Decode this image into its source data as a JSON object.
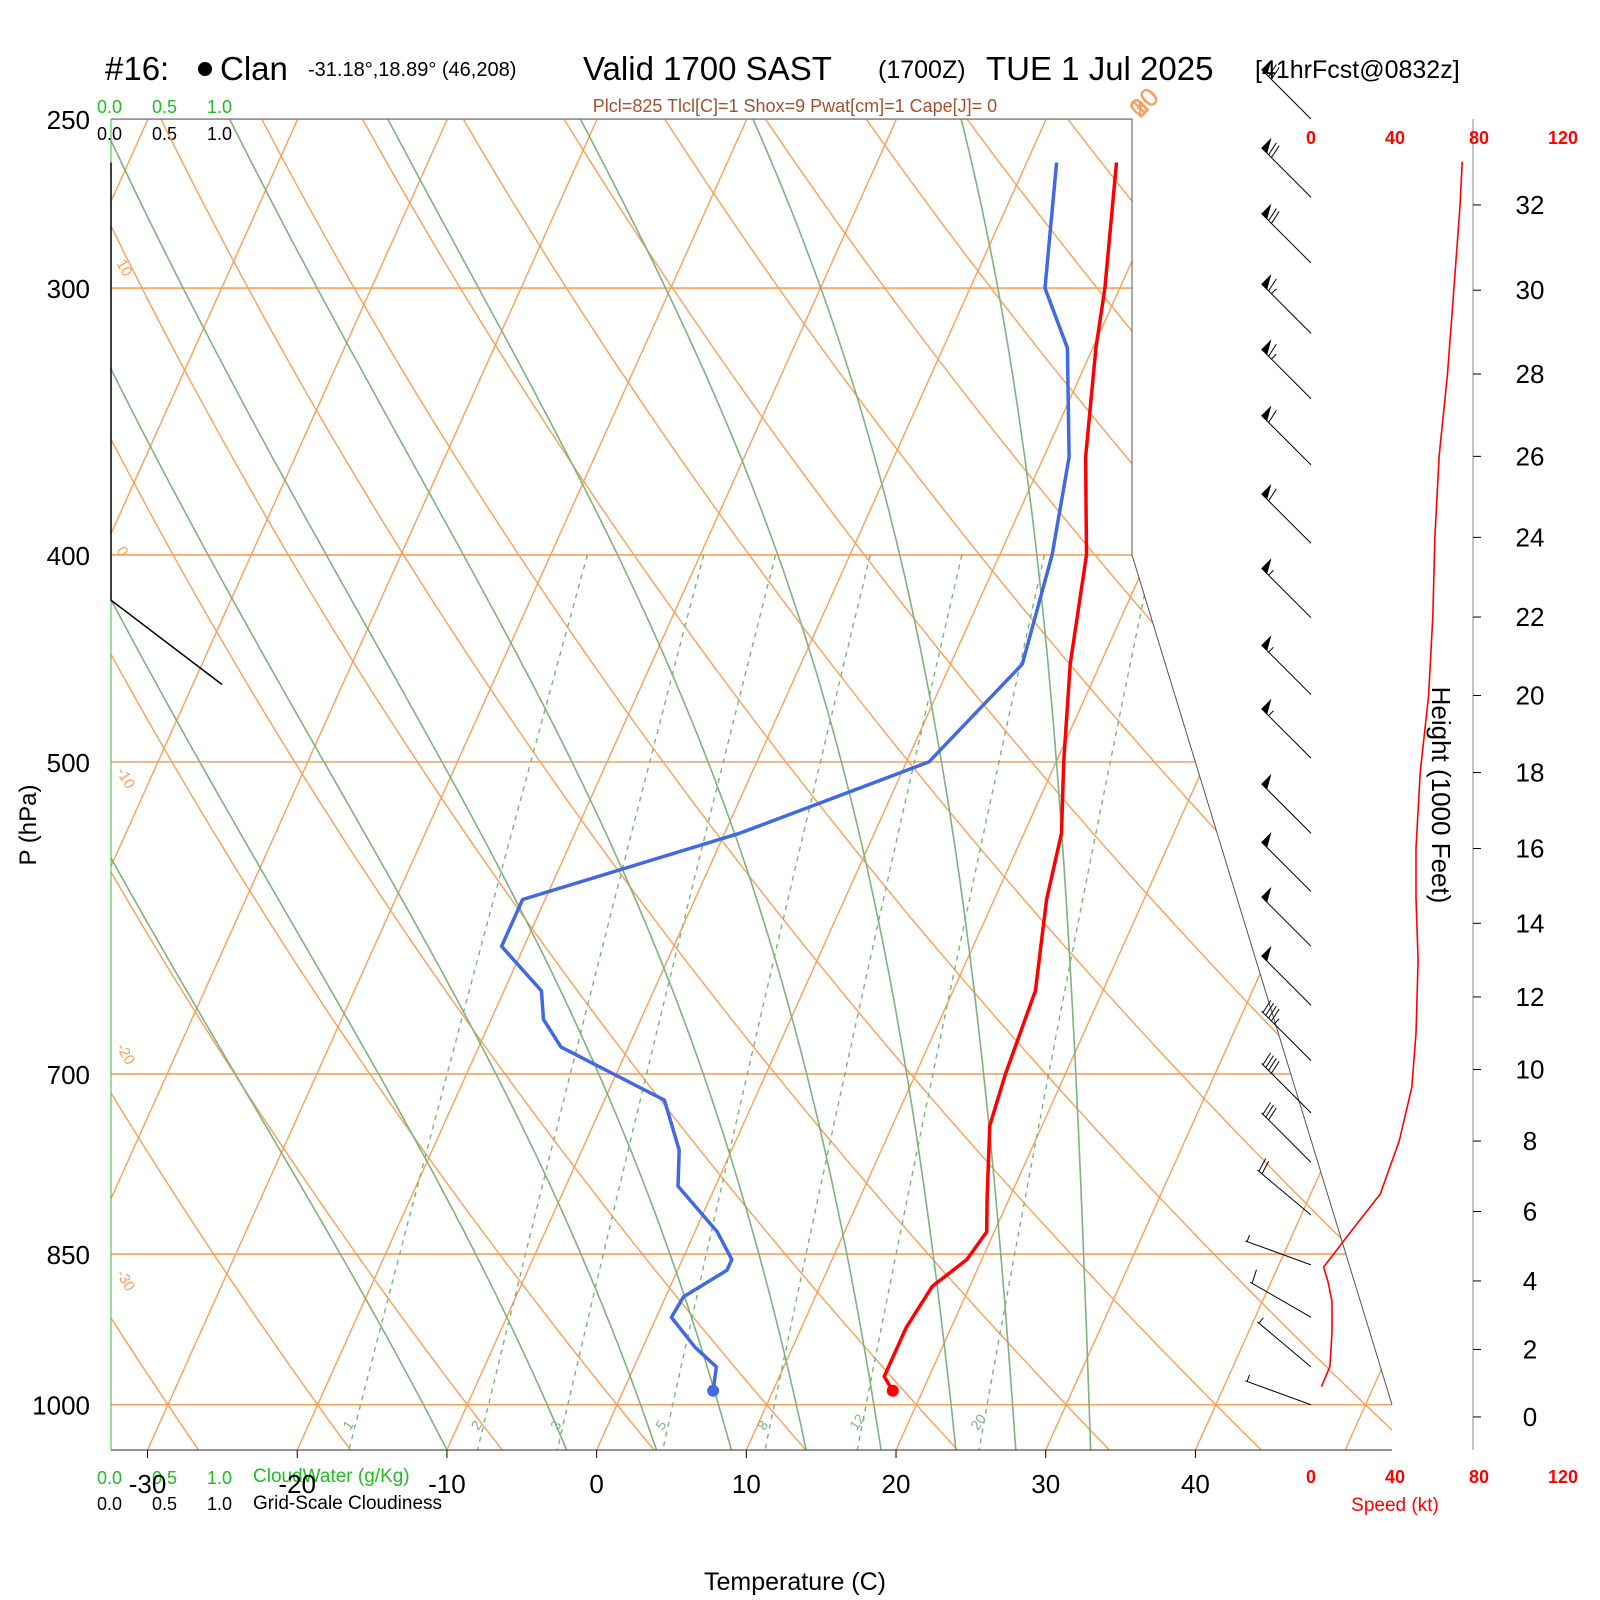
{
  "header": {
    "station": "#16:",
    "place": "Clan",
    "coords": "-31.18°,18.89° (46,208)",
    "valid": "Valid 1700 SAST",
    "zulu": "(1700Z)",
    "date": "TUE 1 Jul 2025",
    "forecast": "[41hrFcst@0832z]",
    "indices": "Plcl=825 Tlcl[C]=1 Shox=9 Pwat[cm]=1 Cape[J]= 0"
  },
  "colors": {
    "temperature": "#ff0000",
    "dewpoint": "#4169e1",
    "isotherm": "#f5a05a",
    "moist_adiabat": "#7fb27f",
    "mixing_ratio": "#7fb27f",
    "wind_speed": "#ff0000",
    "cloudwater_label": "#22bb22",
    "indices_text": "#a0522d"
  },
  "chart_data": {
    "type": "skew-t",
    "xlabel": "Temperature (C)",
    "ylabel": "P (hPa)",
    "right_ylabel": "Height (1000 Feet)",
    "x_ticks": [
      "-30",
      "-20",
      "-10",
      "0",
      "10",
      "20",
      "30",
      "40"
    ],
    "x_tick_values": [
      -30,
      -20,
      -10,
      0,
      10,
      20,
      30,
      40
    ],
    "p_ticks": [
      "250",
      "300",
      "400",
      "500",
      "700",
      "850",
      "1000"
    ],
    "p_tick_values": [
      250,
      300,
      400,
      500,
      700,
      850,
      1000
    ],
    "height_ticks": [
      "0",
      "2",
      "4",
      "6",
      "8",
      "10",
      "12",
      "14",
      "16",
      "18",
      "20",
      "22",
      "24",
      "26",
      "28",
      "30",
      "32"
    ],
    "height_tick_values_kft": [
      0,
      2,
      4,
      6,
      8,
      10,
      12,
      14,
      16,
      18,
      20,
      22,
      24,
      26,
      28,
      30,
      32
    ],
    "temperature_profile": [
      {
        "p": 262,
        "t": -4.0
      },
      {
        "p": 300,
        "t": -1.0
      },
      {
        "p": 320,
        "t": 0.2
      },
      {
        "p": 360,
        "t": 2.8
      },
      {
        "p": 400,
        "t": 5.8
      },
      {
        "p": 450,
        "t": 8.0
      },
      {
        "p": 500,
        "t": 10.5
      },
      {
        "p": 540,
        "t": 12.5
      },
      {
        "p": 580,
        "t": 13.5
      },
      {
        "p": 640,
        "t": 15.5
      },
      {
        "p": 700,
        "t": 16.0
      },
      {
        "p": 740,
        "t": 16.5
      },
      {
        "p": 800,
        "t": 18.5
      },
      {
        "p": 830,
        "t": 19.5
      },
      {
        "p": 855,
        "t": 19.0
      },
      {
        "p": 880,
        "t": 17.5
      },
      {
        "p": 920,
        "t": 17.0
      },
      {
        "p": 970,
        "t": 17.0
      },
      {
        "p": 985,
        "t": 18.0
      }
    ],
    "dewpoint_profile": [
      {
        "p": 262,
        "t": -8.0
      },
      {
        "p": 300,
        "t": -5.0
      },
      {
        "p": 320,
        "t": -1.7
      },
      {
        "p": 360,
        "t": 1.7
      },
      {
        "p": 400,
        "t": 3.5
      },
      {
        "p": 450,
        "t": 4.8
      },
      {
        "p": 500,
        "t": 1.5
      },
      {
        "p": 540,
        "t": -9.0
      },
      {
        "p": 580,
        "t": -21.5
      },
      {
        "p": 610,
        "t": -21.5
      },
      {
        "p": 640,
        "t": -17.5
      },
      {
        "p": 660,
        "t": -16.5
      },
      {
        "p": 680,
        "t": -14.5
      },
      {
        "p": 720,
        "t": -6.0
      },
      {
        "p": 760,
        "t": -3.5
      },
      {
        "p": 790,
        "t": -2.5
      },
      {
        "p": 830,
        "t": 1.5
      },
      {
        "p": 855,
        "t": 3.3
      },
      {
        "p": 865,
        "t": 3.3
      },
      {
        "p": 890,
        "t": 1.2
      },
      {
        "p": 910,
        "t": 1.0
      },
      {
        "p": 940,
        "t": 3.5
      },
      {
        "p": 960,
        "t": 5.5
      },
      {
        "p": 985,
        "t": 6.0
      }
    ],
    "isotherm_labels": [
      "-30",
      "-20",
      "-10",
      "0",
      "10",
      "20",
      "30"
    ],
    "isotherm_label_values": [
      -30,
      -20,
      -10,
      0,
      10,
      20,
      30
    ],
    "dry_adiabat_labels": [
      "10",
      "0",
      "-10",
      "-20",
      "-30"
    ],
    "dry_adiabat_label_values": [
      10,
      0,
      -10,
      -20,
      -30
    ],
    "mixing_ratio_labels": [
      "1",
      "2",
      "3",
      "5",
      "8",
      "12",
      "20"
    ],
    "mixing_ratio_values": [
      1,
      2,
      3,
      5,
      8,
      12,
      20
    ],
    "cloud_axis": {
      "cloudwater_label": "CloudWater (g/Kg)",
      "cloudiness_label": "Grid-Scale Cloudiness",
      "ticks": [
        "0.0",
        "0.5",
        "1.0"
      ],
      "cloudiness_profile": [
        {
          "p": 262,
          "v": 0.0
        },
        {
          "p": 420,
          "v": 0.0
        },
        {
          "p": 460,
          "v": 1.0
        }
      ]
    },
    "wind": {
      "speed_label": "Speed (kt)",
      "speed_ticks": [
        "0",
        "40",
        "80",
        "120"
      ],
      "speed_tick_values": [
        0,
        40,
        80,
        120
      ],
      "speed_profile": [
        {
          "h": 0.9,
          "v": 5
        },
        {
          "h": 1.5,
          "v": 9
        },
        {
          "h": 2.5,
          "v": 10
        },
        {
          "h": 3.4,
          "v": 10
        },
        {
          "h": 4.0,
          "v": 8
        },
        {
          "h": 4.4,
          "v": 6
        },
        {
          "h": 5.5,
          "v": 20
        },
        {
          "h": 6.5,
          "v": 33
        },
        {
          "h": 8.0,
          "v": 42
        },
        {
          "h": 9.5,
          "v": 48
        },
        {
          "h": 11.0,
          "v": 50
        },
        {
          "h": 13.0,
          "v": 51
        },
        {
          "h": 14.7,
          "v": 50
        },
        {
          "h": 16.0,
          "v": 50
        },
        {
          "h": 18.0,
          "v": 52
        },
        {
          "h": 20.0,
          "v": 56
        },
        {
          "h": 22.0,
          "v": 58
        },
        {
          "h": 24.0,
          "v": 59
        },
        {
          "h": 26.0,
          "v": 61
        },
        {
          "h": 28.0,
          "v": 65
        },
        {
          "h": 30.0,
          "v": 68
        },
        {
          "h": 32.0,
          "v": 71
        },
        {
          "h": 33.0,
          "v": 72
        }
      ],
      "barb_levels_hpa": [
        250,
        272,
        292,
        315,
        338,
        363,
        395,
        428,
        465,
        498,
        540,
        575,
        610,
        650,
        690,
        730,
        770,
        815,
        860,
        910,
        960,
        1000
      ],
      "barb_speeds_kt": [
        70,
        70,
        70,
        68,
        65,
        62,
        60,
        58,
        57,
        56,
        52,
        51,
        50,
        50,
        48,
        42,
        33,
        20,
        8,
        10,
        9,
        5
      ]
    }
  }
}
